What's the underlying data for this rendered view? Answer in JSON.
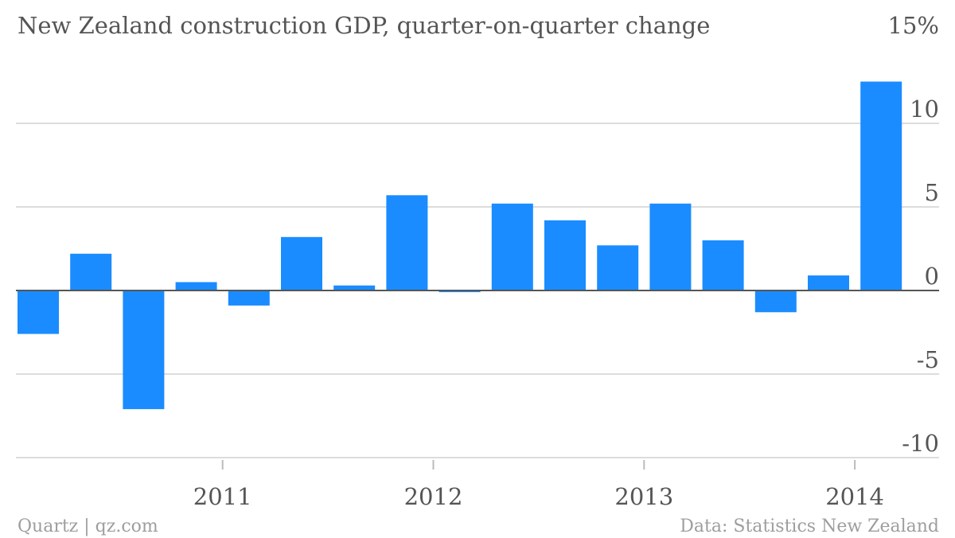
{
  "chart_data": {
    "type": "bar",
    "title": "New Zealand construction GDP, quarter-on-quarter change",
    "unit_label": "15%",
    "source": "Data: Statistics New Zealand",
    "credit": "Quartz | qz.com",
    "colors": {
      "bar": "#1a8cff",
      "text": "#555555",
      "grid": "#dcdcdc",
      "zero_line": "#555555"
    },
    "ylim": [
      -10.5,
      15
    ],
    "y_ticks": [
      10,
      5,
      0,
      -5,
      -10
    ],
    "y_tick_labels": [
      "10",
      "5",
      "0",
      "-5",
      "-10"
    ],
    "x_tick_labels": [
      "2011",
      "2012",
      "2013",
      "2014"
    ],
    "grid": true,
    "categories": [
      "Q1 2010",
      "Q2 2010",
      "Q3 2010",
      "Q4 2010",
      "Q1 2011",
      "Q2 2011",
      "Q3 2011",
      "Q4 2011",
      "Q1 2012",
      "Q2 2012",
      "Q3 2012",
      "Q4 2012",
      "Q1 2013",
      "Q2 2013",
      "Q3 2013",
      "Q4 2013",
      "Q1 2014"
    ],
    "values": [
      -2.6,
      2.2,
      -7.1,
      0.5,
      -0.9,
      3.2,
      0.3,
      5.7,
      -0.1,
      5.2,
      4.2,
      2.7,
      5.2,
      3.0,
      -1.3,
      0.9,
      12.5
    ]
  }
}
